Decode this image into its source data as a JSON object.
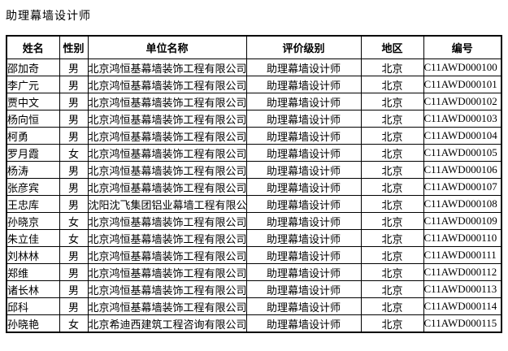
{
  "page": {
    "title": "助理幕墙设计师",
    "text_color": "#000000",
    "background_color": "#ffffff",
    "border_color": "#000000"
  },
  "table": {
    "headers": {
      "name": "姓名",
      "gender": "性别",
      "company": "单位名称",
      "level": "评价级别",
      "region": "地区",
      "code": "编号"
    },
    "rows": [
      {
        "name": "邵加奇",
        "gender": "男",
        "company": "北京鸿恒基幕墙装饰工程有限公司",
        "level": "助理幕墙设计师",
        "region": "北京",
        "code": "C11AWD000100"
      },
      {
        "name": "李广元",
        "gender": "男",
        "company": "北京鸿恒基幕墙装饰工程有限公司",
        "level": "助理幕墙设计师",
        "region": "北京",
        "code": "C11AWD000101"
      },
      {
        "name": "贾中文",
        "gender": "男",
        "company": "北京鸿恒基幕墙装饰工程有限公司",
        "level": "助理幕墙设计师",
        "region": "北京",
        "code": "C11AWD000102"
      },
      {
        "name": "杨向恒",
        "gender": "男",
        "company": "北京鸿恒基幕墙装饰工程有限公司",
        "level": "助理幕墙设计师",
        "region": "北京",
        "code": "C11AWD000103"
      },
      {
        "name": "柯勇",
        "gender": "男",
        "company": "北京鸿恒基幕墙装饰工程有限公司",
        "level": "助理幕墙设计师",
        "region": "北京",
        "code": "C11AWD000104"
      },
      {
        "name": "罗月霞",
        "gender": "女",
        "company": "北京鸿恒基幕墙装饰工程有限公司",
        "level": "助理幕墙设计师",
        "region": "北京",
        "code": "C11AWD000105"
      },
      {
        "name": "杨涛",
        "gender": "男",
        "company": "北京鸿恒基幕墙装饰工程有限公司",
        "level": "助理幕墙设计师",
        "region": "北京",
        "code": "C11AWD000106"
      },
      {
        "name": "张彦宾",
        "gender": "男",
        "company": "北京鸿恒基幕墙装饰工程有限公司",
        "level": "助理幕墙设计师",
        "region": "北京",
        "code": "C11AWD000107"
      },
      {
        "name": "王忠库",
        "gender": "男",
        "company": "沈阳沈飞集团铝业幕墙工程有限公司",
        "level": "助理幕墙设计师",
        "region": "北京",
        "code": "C11AWD000108"
      },
      {
        "name": "孙晓京",
        "gender": "女",
        "company": "北京鸿恒基幕墙装饰工程有限公司",
        "level": "助理幕墙设计师",
        "region": "北京",
        "code": "C11AWD000109"
      },
      {
        "name": "朱立佳",
        "gender": "女",
        "company": "北京鸿恒基幕墙装饰工程有限公司",
        "level": "助理幕墙设计师",
        "region": "北京",
        "code": "C11AWD000110"
      },
      {
        "name": "刘林林",
        "gender": "男",
        "company": "北京鸿恒基幕墙装饰工程有限公司",
        "level": "助理幕墙设计师",
        "region": "北京",
        "code": "C11AWD000111"
      },
      {
        "name": "郑维",
        "gender": "男",
        "company": "北京鸿恒基幕墙装饰工程有限公司",
        "level": "助理幕墙设计师",
        "region": "北京",
        "code": "C11AWD000112"
      },
      {
        "name": "诸长林",
        "gender": "男",
        "company": "北京鸿恒基幕墙装饰工程有限公司",
        "level": "助理幕墙设计师",
        "region": "北京",
        "code": "C11AWD000113"
      },
      {
        "name": "邱科",
        "gender": "男",
        "company": "北京鸿恒基幕墙装饰工程有限公司",
        "level": "助理幕墙设计师",
        "region": "北京",
        "code": "C11AWD000114"
      },
      {
        "name": "孙晓艳",
        "gender": "女",
        "company": "北京希迪西建筑工程咨询有限公司",
        "level": "助理幕墙设计师",
        "region": "北京",
        "code": "C11AWD000115"
      }
    ]
  }
}
